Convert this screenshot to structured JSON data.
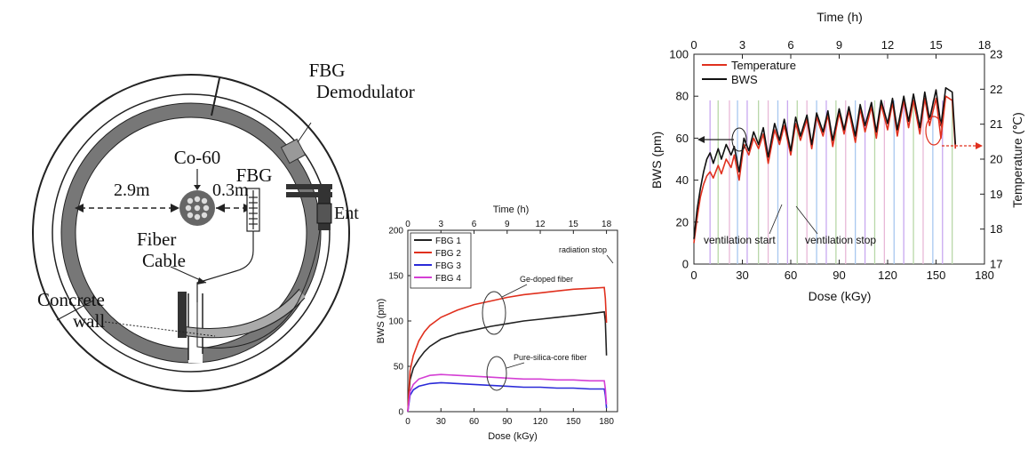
{
  "schematic": {
    "fbg_demodulator_line1": "FBG",
    "fbg_demodulator_line2": "Demodulator",
    "co60": "Co-60",
    "fbg": "FBG",
    "dist_left": "2.9m",
    "dist_right": "0.3m",
    "ent": "Ent",
    "fiber_cable_line1": "Fiber",
    "fiber_cable_line2": "Cable",
    "concrete_wall_line1": "Concrete",
    "concrete_wall_line2": "wall"
  },
  "chart_data": [
    {
      "type": "line",
      "title": "",
      "xlabel": "Dose (kGy)",
      "ylabel": "BWS (pm)",
      "top_axis_label": "Time (h)",
      "xlim": [
        0,
        190
      ],
      "ylim": [
        0,
        200
      ],
      "x_ticks": [
        "0",
        "30",
        "60",
        "90",
        "120",
        "150",
        "180"
      ],
      "y_ticks": [
        "0",
        "50",
        "100",
        "150",
        "200"
      ],
      "top_ticks": [
        "0",
        "3",
        "6",
        "9",
        "12",
        "15",
        "18"
      ],
      "legend_position": "top-left",
      "annotations": {
        "radiation_stop": "radiation stop",
        "ge_doped": "Ge-doped fiber",
        "pure_silica": "Pure-silica-core fiber"
      },
      "series": [
        {
          "name": "FBG 1",
          "color": "#222222",
          "x": [
            0,
            2,
            5,
            10,
            15,
            20,
            30,
            45,
            60,
            75,
            90,
            105,
            120,
            135,
            150,
            165,
            178,
            179,
            180
          ],
          "y": [
            0,
            35,
            48,
            58,
            66,
            72,
            80,
            86,
            90,
            94,
            97,
            100,
            102,
            104,
            106,
            108,
            110,
            100,
            62
          ]
        },
        {
          "name": "FBG 2",
          "color": "#e0301e",
          "x": [
            0,
            2,
            5,
            10,
            15,
            20,
            30,
            45,
            60,
            75,
            90,
            105,
            120,
            135,
            150,
            165,
            178,
            179,
            180
          ],
          "y": [
            0,
            45,
            62,
            78,
            88,
            95,
            104,
            112,
            118,
            122,
            126,
            129,
            131,
            133,
            135,
            136,
            137,
            125,
            98
          ]
        },
        {
          "name": "FBG 3",
          "color": "#2a2ad8",
          "x": [
            0,
            2,
            5,
            10,
            20,
            30,
            45,
            60,
            75,
            90,
            105,
            120,
            135,
            150,
            165,
            178,
            179,
            180
          ],
          "y": [
            0,
            18,
            24,
            28,
            31,
            32,
            31,
            30,
            29,
            28,
            27,
            27,
            26,
            26,
            25,
            25,
            18,
            4
          ]
        },
        {
          "name": "FBG 4",
          "color": "#d43fd4",
          "x": [
            0,
            2,
            5,
            10,
            20,
            30,
            45,
            60,
            75,
            90,
            105,
            120,
            135,
            150,
            165,
            178,
            179,
            180
          ],
          "y": [
            0,
            22,
            30,
            36,
            40,
            41,
            40,
            39,
            38,
            37,
            36,
            36,
            35,
            35,
            34,
            34,
            25,
            8
          ]
        }
      ]
    },
    {
      "type": "line",
      "title": "",
      "xlabel": "Dose (kGy)",
      "ylabel": "BWS (pm)",
      "y2label": "Temperature (℃)",
      "top_axis_label": "Time (h)",
      "xlim": [
        0,
        180
      ],
      "ylim": [
        0,
        100
      ],
      "y2lim": [
        17,
        23
      ],
      "x_ticks": [
        "0",
        "30",
        "60",
        "90",
        "120",
        "150",
        "180"
      ],
      "y_ticks": [
        "0",
        "20",
        "40",
        "60",
        "80",
        "100"
      ],
      "y2_ticks": [
        "17",
        "18",
        "19",
        "20",
        "21",
        "22",
        "23"
      ],
      "top_ticks": [
        "0",
        "3",
        "6",
        "9",
        "12",
        "15",
        "18"
      ],
      "legend_position": "top-left",
      "annotations": {
        "ventilation_start": "ventilation start",
        "ventilation_stop": "ventilation stop"
      },
      "ventilation_marks_x": [
        10,
        15,
        22,
        27,
        33,
        40,
        46,
        52,
        58,
        64,
        70,
        76,
        82,
        88,
        94,
        100,
        106,
        112,
        118,
        124,
        130,
        136,
        142,
        148,
        154,
        160
      ],
      "series": [
        {
          "name": "Temperature",
          "color": "#e0301e",
          "x": [
            0,
            2,
            4,
            6,
            8,
            10,
            12,
            15,
            17,
            20,
            23,
            25,
            28,
            31,
            34,
            37,
            40,
            43,
            46,
            50,
            53,
            56,
            60,
            63,
            66,
            70,
            73,
            76,
            80,
            83,
            86,
            90,
            93,
            96,
            100,
            103,
            106,
            110,
            113,
            116,
            120,
            123,
            126,
            130,
            133,
            136,
            140,
            143,
            146,
            150,
            153,
            156,
            160,
            162
          ],
          "y": [
            10,
            22,
            32,
            38,
            42,
            44,
            41,
            47,
            43,
            50,
            46,
            52,
            40,
            57,
            52,
            60,
            55,
            62,
            48,
            64,
            57,
            66,
            52,
            67,
            59,
            69,
            55,
            70,
            61,
            71,
            56,
            72,
            62,
            73,
            58,
            74,
            63,
            75,
            60,
            76,
            64,
            77,
            61,
            78,
            65,
            78,
            62,
            79,
            66,
            79,
            60,
            80,
            78,
            55
          ]
        },
        {
          "name": "BWS",
          "color": "#111111",
          "x": [
            0,
            2,
            4,
            6,
            8,
            10,
            12,
            15,
            17,
            20,
            23,
            25,
            28,
            31,
            34,
            37,
            40,
            43,
            46,
            50,
            53,
            56,
            60,
            63,
            66,
            70,
            73,
            76,
            80,
            83,
            86,
            90,
            93,
            96,
            100,
            103,
            106,
            110,
            113,
            116,
            120,
            123,
            126,
            130,
            133,
            136,
            140,
            143,
            146,
            150,
            153,
            156,
            160,
            162
          ],
          "y": [
            12,
            26,
            36,
            44,
            50,
            53,
            48,
            55,
            50,
            57,
            52,
            56,
            44,
            60,
            54,
            63,
            57,
            65,
            51,
            67,
            59,
            69,
            54,
            70,
            61,
            71,
            57,
            72,
            63,
            73,
            59,
            74,
            64,
            75,
            61,
            76,
            66,
            77,
            63,
            78,
            67,
            79,
            64,
            80,
            68,
            81,
            65,
            82,
            69,
            83,
            66,
            84,
            82,
            57
          ]
        }
      ]
    }
  ]
}
